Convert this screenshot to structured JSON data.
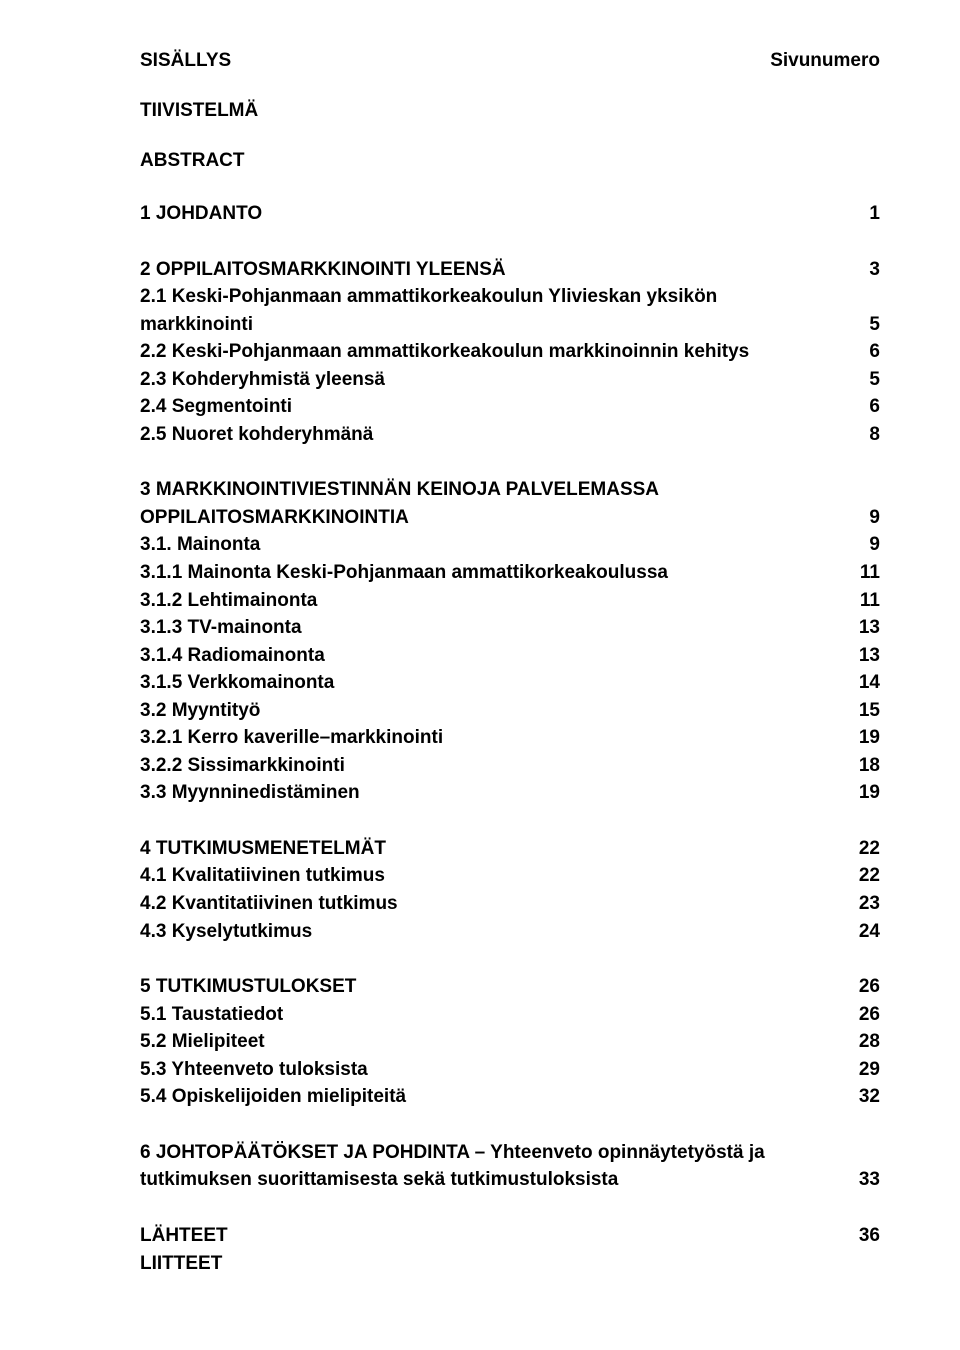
{
  "header": {
    "left": "SISÄLLYS",
    "right": "Sivunumero"
  },
  "plain_sections": [
    "TIIVISTELMÄ",
    "ABSTRACT"
  ],
  "groups": [
    {
      "lines": [
        {
          "label": "1 JOHDANTO",
          "page": "1"
        }
      ]
    },
    {
      "lines": [
        {
          "label": "2 OPPILAITOSMARKKINOINTI YLEENSÄ",
          "page": "3"
        },
        {
          "label": "2.1 Keski-Pohjanmaan ammattikorkeakoulun Ylivieskan yksikön",
          "page": ""
        },
        {
          "label": "markkinointi",
          "page": "5"
        },
        {
          "label": "2.2 Keski-Pohjanmaan ammattikorkeakoulun markkinoinnin kehitys",
          "page": "6"
        },
        {
          "label": "2.3 Kohderyhmistä yleensä",
          "page": "5"
        },
        {
          "label": "2.4 Segmentointi",
          "page": "6"
        },
        {
          "label": "2.5 Nuoret kohderyhmänä",
          "page": "8"
        }
      ]
    },
    {
      "lines": [
        {
          "label": "3 MARKKINOINTIVIESTINNÄN KEINOJA PALVELEMASSA",
          "page": ""
        },
        {
          "label": "OPPILAITOSMARKKINOINTIA",
          "page": "9"
        },
        {
          "label": "3.1. Mainonta",
          "page": "9"
        },
        {
          "label": "3.1.1 Mainonta Keski-Pohjanmaan ammattikorkeakoulussa",
          "page": "11"
        },
        {
          "label": "3.1.2 Lehtimainonta",
          "page": "11"
        },
        {
          "label": "3.1.3 TV-mainonta",
          "page": "13"
        },
        {
          "label": "3.1.4 Radiomainonta",
          "page": "13"
        },
        {
          "label": "3.1.5 Verkkomainonta",
          "page": "14"
        },
        {
          "label": "3.2 Myyntityö",
          "page": "15"
        },
        {
          "label": "3.2.1 Kerro kaverille–markkinointi",
          "page": "19"
        },
        {
          "label": "3.2.2 Sissimarkkinointi",
          "page": "18"
        },
        {
          "label": "3.3 Myynninedistäminen",
          "page": "19"
        }
      ]
    },
    {
      "lines": [
        {
          "label": "4 TUTKIMUSMENETELMÄT",
          "page": "22"
        },
        {
          "label": "4.1 Kvalitatiivinen tutkimus",
          "page": "22"
        },
        {
          "label": "4.2 Kvantitatiivinen tutkimus",
          "page": "23"
        },
        {
          "label": "4.3 Kyselytutkimus",
          "page": "24"
        }
      ]
    },
    {
      "lines": [
        {
          "label": "5 TUTKIMUSTULOKSET",
          "page": "26"
        },
        {
          "label": "5.1 Taustatiedot",
          "page": "26"
        },
        {
          "label": "5.2 Mielipiteet",
          "page": "28"
        },
        {
          "label": "5.3 Yhteenveto tuloksista",
          "page": "29"
        },
        {
          "label": "5.4 Opiskelijoiden mielipiteitä",
          "page": "32"
        }
      ]
    },
    {
      "lines": [
        {
          "label": "6 JOHTOPÄÄTÖKSET JA POHDINTA – Yhteenveto opinnäytetyöstä ja",
          "page": ""
        },
        {
          "label": "tutkimuksen suorittamisesta sekä tutkimustuloksista",
          "page": "33"
        }
      ]
    },
    {
      "last": true,
      "lines": [
        {
          "label": "LÄHTEET",
          "page": "36"
        },
        {
          "label": "LIITTEET",
          "page": ""
        }
      ]
    }
  ]
}
